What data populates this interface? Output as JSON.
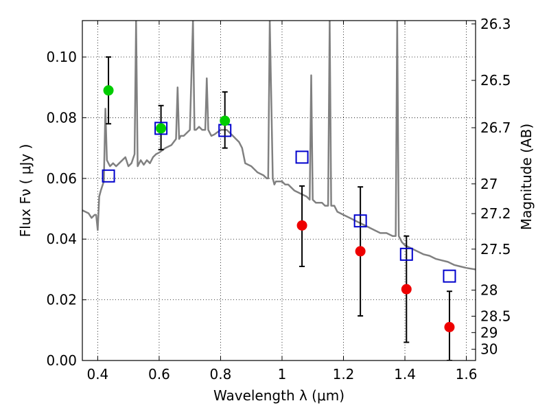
{
  "chart_data": {
    "type": "scatter",
    "xlabel": "Wavelength  λ (μm)",
    "ylabel": "Flux  Fν  ( μJy )",
    "y2label": "Magnitude (AB)",
    "xlim": [
      0.35,
      1.63
    ],
    "ylim": [
      0.0,
      0.112
    ],
    "grid": true,
    "x_ticks": [
      0.4,
      0.6,
      0.8,
      1.0,
      1.2,
      1.4,
      1.6
    ],
    "x_tick_labels": [
      "0.4",
      "0.6",
      "0.8",
      "1",
      "1.2",
      "1.4",
      "1.6"
    ],
    "y_ticks": [
      0.0,
      0.02,
      0.04,
      0.06,
      0.08,
      0.1
    ],
    "y_tick_labels": [
      "0.00",
      "0.02",
      "0.04",
      "0.06",
      "0.08",
      "0.10"
    ],
    "y2_ticks": [
      {
        "label": "26.3",
        "flux": 0.1109
      },
      {
        "label": "26.5",
        "flux": 0.0923
      },
      {
        "label": "26.7",
        "flux": 0.0767
      },
      {
        "label": "27",
        "flux": 0.0582
      },
      {
        "label": "27.2",
        "flux": 0.0484
      },
      {
        "label": "27.5",
        "flux": 0.0367
      },
      {
        "label": "28",
        "flux": 0.0232
      },
      {
        "label": "28.5",
        "flux": 0.0146
      },
      {
        "label": "29",
        "flux": 0.0092
      },
      {
        "label": "30",
        "flux": 0.0037
      }
    ],
    "series": [
      {
        "marker": "circle",
        "color": "#00cc00",
        "points": [
          {
            "x": 0.435,
            "y": 0.089,
            "yerr_low": 0.078,
            "yerr_high": 0.1
          },
          {
            "x": 0.606,
            "y": 0.0765,
            "yerr_low": 0.0695,
            "yerr_high": 0.084
          },
          {
            "x": 0.814,
            "y": 0.079,
            "yerr_low": 0.07,
            "yerr_high": 0.0885
          }
        ]
      },
      {
        "marker": "circle",
        "color": "#ee0000",
        "points": [
          {
            "x": 1.065,
            "y": 0.0445,
            "yerr_low": 0.031,
            "yerr_high": 0.0575
          },
          {
            "x": 1.255,
            "y": 0.036,
            "yerr_low": 0.0147,
            "yerr_high": 0.0572
          },
          {
            "x": 1.405,
            "y": 0.0235,
            "yerr_low": 0.006,
            "yerr_high": 0.041
          },
          {
            "x": 1.545,
            "y": 0.011,
            "yerr_low": 0.0,
            "yerr_high": 0.0228
          }
        ]
      },
      {
        "marker": "open-square",
        "color": "#0000cc",
        "points": [
          {
            "x": 0.435,
            "y": 0.0608
          },
          {
            "x": 0.606,
            "y": 0.0765
          },
          {
            "x": 0.814,
            "y": 0.0758
          },
          {
            "x": 1.065,
            "y": 0.067
          },
          {
            "x": 1.255,
            "y": 0.046
          },
          {
            "x": 1.405,
            "y": 0.035
          },
          {
            "x": 1.545,
            "y": 0.0278
          }
        ]
      },
      {
        "marker": "line",
        "color": "#808080",
        "x": [
          0.35,
          0.37,
          0.38,
          0.39,
          0.395,
          0.4,
          0.405,
          0.41,
          0.42,
          0.425,
          0.43,
          0.44,
          0.45,
          0.46,
          0.47,
          0.48,
          0.49,
          0.5,
          0.51,
          0.52,
          0.525,
          0.53,
          0.54,
          0.55,
          0.56,
          0.57,
          0.58,
          0.59,
          0.6,
          0.62,
          0.64,
          0.655,
          0.66,
          0.665,
          0.67,
          0.68,
          0.7,
          0.71,
          0.715,
          0.72,
          0.73,
          0.74,
          0.75,
          0.755,
          0.76,
          0.77,
          0.78,
          0.8,
          0.82,
          0.84,
          0.85,
          0.86,
          0.87,
          0.88,
          0.9,
          0.92,
          0.94,
          0.95,
          0.955,
          0.96,
          0.97,
          0.975,
          0.98,
          1.0,
          1.01,
          1.02,
          1.04,
          1.06,
          1.08,
          1.09,
          1.095,
          1.1,
          1.11,
          1.13,
          1.14,
          1.15,
          1.155,
          1.16,
          1.17,
          1.18,
          1.2,
          1.22,
          1.24,
          1.26,
          1.28,
          1.3,
          1.32,
          1.34,
          1.36,
          1.37,
          1.375,
          1.38,
          1.39,
          1.4,
          1.42,
          1.44,
          1.46,
          1.48,
          1.5,
          1.52,
          1.54,
          1.56,
          1.58,
          1.6,
          1.63
        ],
        "y": [
          0.0495,
          0.0485,
          0.047,
          0.048,
          0.048,
          0.043,
          0.054,
          0.056,
          0.059,
          0.083,
          0.066,
          0.064,
          0.065,
          0.064,
          0.065,
          0.066,
          0.067,
          0.064,
          0.065,
          0.068,
          0.112,
          0.064,
          0.066,
          0.0645,
          0.066,
          0.065,
          0.067,
          0.068,
          0.0685,
          0.07,
          0.071,
          0.073,
          0.09,
          0.073,
          0.074,
          0.074,
          0.076,
          0.112,
          0.076,
          0.076,
          0.077,
          0.076,
          0.076,
          0.093,
          0.076,
          0.074,
          0.0745,
          0.076,
          0.076,
          0.074,
          0.073,
          0.072,
          0.07,
          0.065,
          0.064,
          0.062,
          0.061,
          0.06,
          0.06,
          0.112,
          0.06,
          0.058,
          0.059,
          0.059,
          0.058,
          0.058,
          0.056,
          0.055,
          0.054,
          0.053,
          0.094,
          0.053,
          0.052,
          0.052,
          0.051,
          0.051,
          0.112,
          0.051,
          0.051,
          0.049,
          0.048,
          0.047,
          0.046,
          0.045,
          0.044,
          0.043,
          0.042,
          0.042,
          0.041,
          0.041,
          0.112,
          0.041,
          0.039,
          0.038,
          0.037,
          0.036,
          0.035,
          0.0345,
          0.0335,
          0.033,
          0.0325,
          0.0315,
          0.031,
          0.0305,
          0.03
        ]
      }
    ]
  }
}
